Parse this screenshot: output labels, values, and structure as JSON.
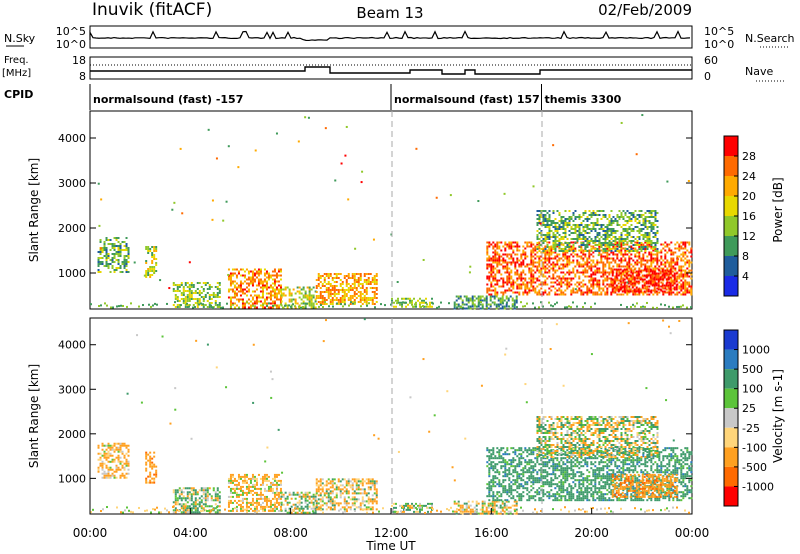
{
  "header": {
    "station": "Inuvik (fitACF)",
    "beam": "Beam 13",
    "date": "02/Feb/2009"
  },
  "top_panel": {
    "left_label": "N.Sky",
    "right_label": "N.Search",
    "left_ticks": [
      "10^5",
      "10^0"
    ],
    "right_ticks": [
      "10^5",
      "10^0"
    ]
  },
  "freq_panel": {
    "left_label_1": "Freq.",
    "left_label_2": "[MHz]",
    "right_label": "Nave",
    "left_ticks": [
      "18",
      "8"
    ],
    "right_ticks": [
      "60",
      "0"
    ]
  },
  "cpid": {
    "label": "CPID",
    "segments": [
      {
        "start": 0,
        "end": 12,
        "text": "normalsound (fast) -157"
      },
      {
        "start": 12,
        "end": 18,
        "text": "normalsound (fast) 157"
      },
      {
        "start": 18,
        "end": 24,
        "text": "themis 3300"
      }
    ]
  },
  "chart_data": [
    {
      "type": "heatmap",
      "name": "power",
      "ylabel": "Slant Range [km]",
      "yticks": [
        1000,
        2000,
        3000,
        4000
      ],
      "ylim": [
        200,
        4600
      ],
      "colorbar_label": "Power [dB]",
      "colorbar_ticks": [
        "28",
        "24",
        "20",
        "16",
        "12",
        "8",
        "4"
      ],
      "colorbar_colors": [
        "#ff0000",
        "#ff6a00",
        "#ffaa00",
        "#e8d800",
        "#90c82a",
        "#3f9a5a",
        "#1f5d9c",
        "#1a2be6"
      ],
      "echo_regions": [
        {
          "t": [
            0.3,
            1.5
          ],
          "r": [
            1000,
            1800
          ],
          "v": 10
        },
        {
          "t": [
            2.2,
            2.6
          ],
          "r": [
            900,
            1600
          ],
          "v": 14
        },
        {
          "t": [
            3.3,
            5.2
          ],
          "r": [
            250,
            800
          ],
          "v": 12
        },
        {
          "t": [
            5.5,
            7.6
          ],
          "r": [
            250,
            1100
          ],
          "v": 22
        },
        {
          "t": [
            7.6,
            9.0
          ],
          "r": [
            250,
            700
          ],
          "v": 14
        },
        {
          "t": [
            9.0,
            11.4
          ],
          "r": [
            300,
            1000
          ],
          "v": 20
        },
        {
          "t": [
            12.0,
            13.6
          ],
          "r": [
            250,
            450
          ],
          "v": 12
        },
        {
          "t": [
            14.5,
            17.0
          ],
          "r": [
            200,
            500
          ],
          "v": 8
        },
        {
          "t": [
            15.8,
            24.0
          ],
          "r": [
            500,
            1700
          ],
          "v": 24
        },
        {
          "t": [
            17.8,
            22.6
          ],
          "r": [
            1500,
            2400
          ],
          "v": 10
        },
        {
          "t": [
            20.8,
            23.4
          ],
          "r": [
            600,
            1100
          ],
          "v": 28
        }
      ]
    },
    {
      "type": "heatmap",
      "name": "velocity",
      "ylabel": "Slant Range [km]",
      "yticks": [
        1000,
        2000,
        3000,
        4000
      ],
      "ylim": [
        200,
        4600
      ],
      "xlabel": "Time UT",
      "xticks": [
        "00:00",
        "04:00",
        "08:00",
        "12:00",
        "16:00",
        "20:00",
        "00:00"
      ],
      "xlim": [
        0,
        24
      ],
      "colorbar_label": "Velocity [m s-1]",
      "colorbar_ticks": [
        "1000",
        "500",
        "100",
        "25",
        "-25",
        "-100",
        "-500",
        "-1000"
      ],
      "colorbar_colors": [
        "#1a3ad0",
        "#2b7cc0",
        "#3e9a6a",
        "#5cc43a",
        "#c8c8c8",
        "#ffd57a",
        "#ffa020",
        "#ff6a00",
        "#ff0000"
      ],
      "echo_regions": [
        {
          "t": [
            0.3,
            1.5
          ],
          "r": [
            1000,
            1800
          ],
          "v": -200
        },
        {
          "t": [
            2.2,
            2.6
          ],
          "r": [
            900,
            1600
          ],
          "v": -300
        },
        {
          "t": [
            3.3,
            5.2
          ],
          "r": [
            250,
            800
          ],
          "v": 80
        },
        {
          "t": [
            5.5,
            7.6
          ],
          "r": [
            250,
            1100
          ],
          "v": -150
        },
        {
          "t": [
            7.6,
            9.0
          ],
          "r": [
            250,
            700
          ],
          "v": 60
        },
        {
          "t": [
            9.0,
            11.4
          ],
          "r": [
            300,
            1000
          ],
          "v": -80
        },
        {
          "t": [
            12.0,
            13.6
          ],
          "r": [
            250,
            450
          ],
          "v": 40
        },
        {
          "t": [
            14.5,
            17.0
          ],
          "r": [
            200,
            500
          ],
          "v": -60
        },
        {
          "t": [
            15.8,
            24.0
          ],
          "r": [
            500,
            1700
          ],
          "v": 300
        },
        {
          "t": [
            17.8,
            22.6
          ],
          "r": [
            1500,
            2400
          ],
          "v": 0
        },
        {
          "t": [
            20.8,
            23.4
          ],
          "r": [
            600,
            1100
          ],
          "v": -350
        }
      ]
    }
  ]
}
